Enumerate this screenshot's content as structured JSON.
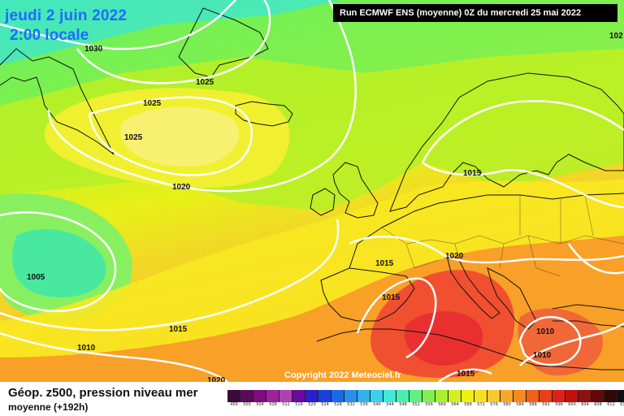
{
  "title": {
    "date": "jeudi 2 juin 2022",
    "time": "2:00 locale"
  },
  "run_info": "Run ECMWF ENS (moyenne) 0Z du mercredi 25 mai 2022",
  "copyright": "Copyright 2022 Meteociel.fr",
  "footer": {
    "title": "Géop. z500, pression niveau mer",
    "subtitle": "moyenne   (+192h)"
  },
  "isobar_labels": [
    "1030",
    "1025",
    "1025",
    "1025",
    "1020",
    "1005",
    "1015",
    "1010",
    "1020",
    "1015",
    "1015",
    "1020",
    "1015",
    "1010",
    "1010",
    "1015",
    "102"
  ],
  "color_scale": {
    "labels": [
      "456",
      "500",
      "504",
      "508",
      "512",
      "516",
      "520",
      "524",
      "528",
      "532",
      "536",
      "540",
      "544",
      "548",
      "552",
      "556",
      "560",
      "564",
      "568",
      "572",
      "576",
      "580",
      "584",
      "588",
      "592",
      "596",
      "600",
      "604",
      "608",
      "612",
      "616"
    ],
    "colors": [
      "#3a0a3a",
      "#5a0a5a",
      "#800a80",
      "#a020a0",
      "#b040b0",
      "#6a0aa0",
      "#2a20c8",
      "#1a40e0",
      "#1a6ae8",
      "#2a90ec",
      "#30b0ee",
      "#38d0ee",
      "#40e8d8",
      "#48f0b0",
      "#60f080",
      "#80f050",
      "#a8f030",
      "#d0f020",
      "#f0f010",
      "#f8e020",
      "#f8c830",
      "#f8a828",
      "#f88820",
      "#f06018",
      "#e84018",
      "#e02018",
      "#c01010",
      "#901010",
      "#600a0a",
      "#300808",
      "#101010"
    ]
  },
  "colors": {
    "title_blue": "#1e6cff",
    "isobar": "#ffffff",
    "coast": "#111111"
  }
}
